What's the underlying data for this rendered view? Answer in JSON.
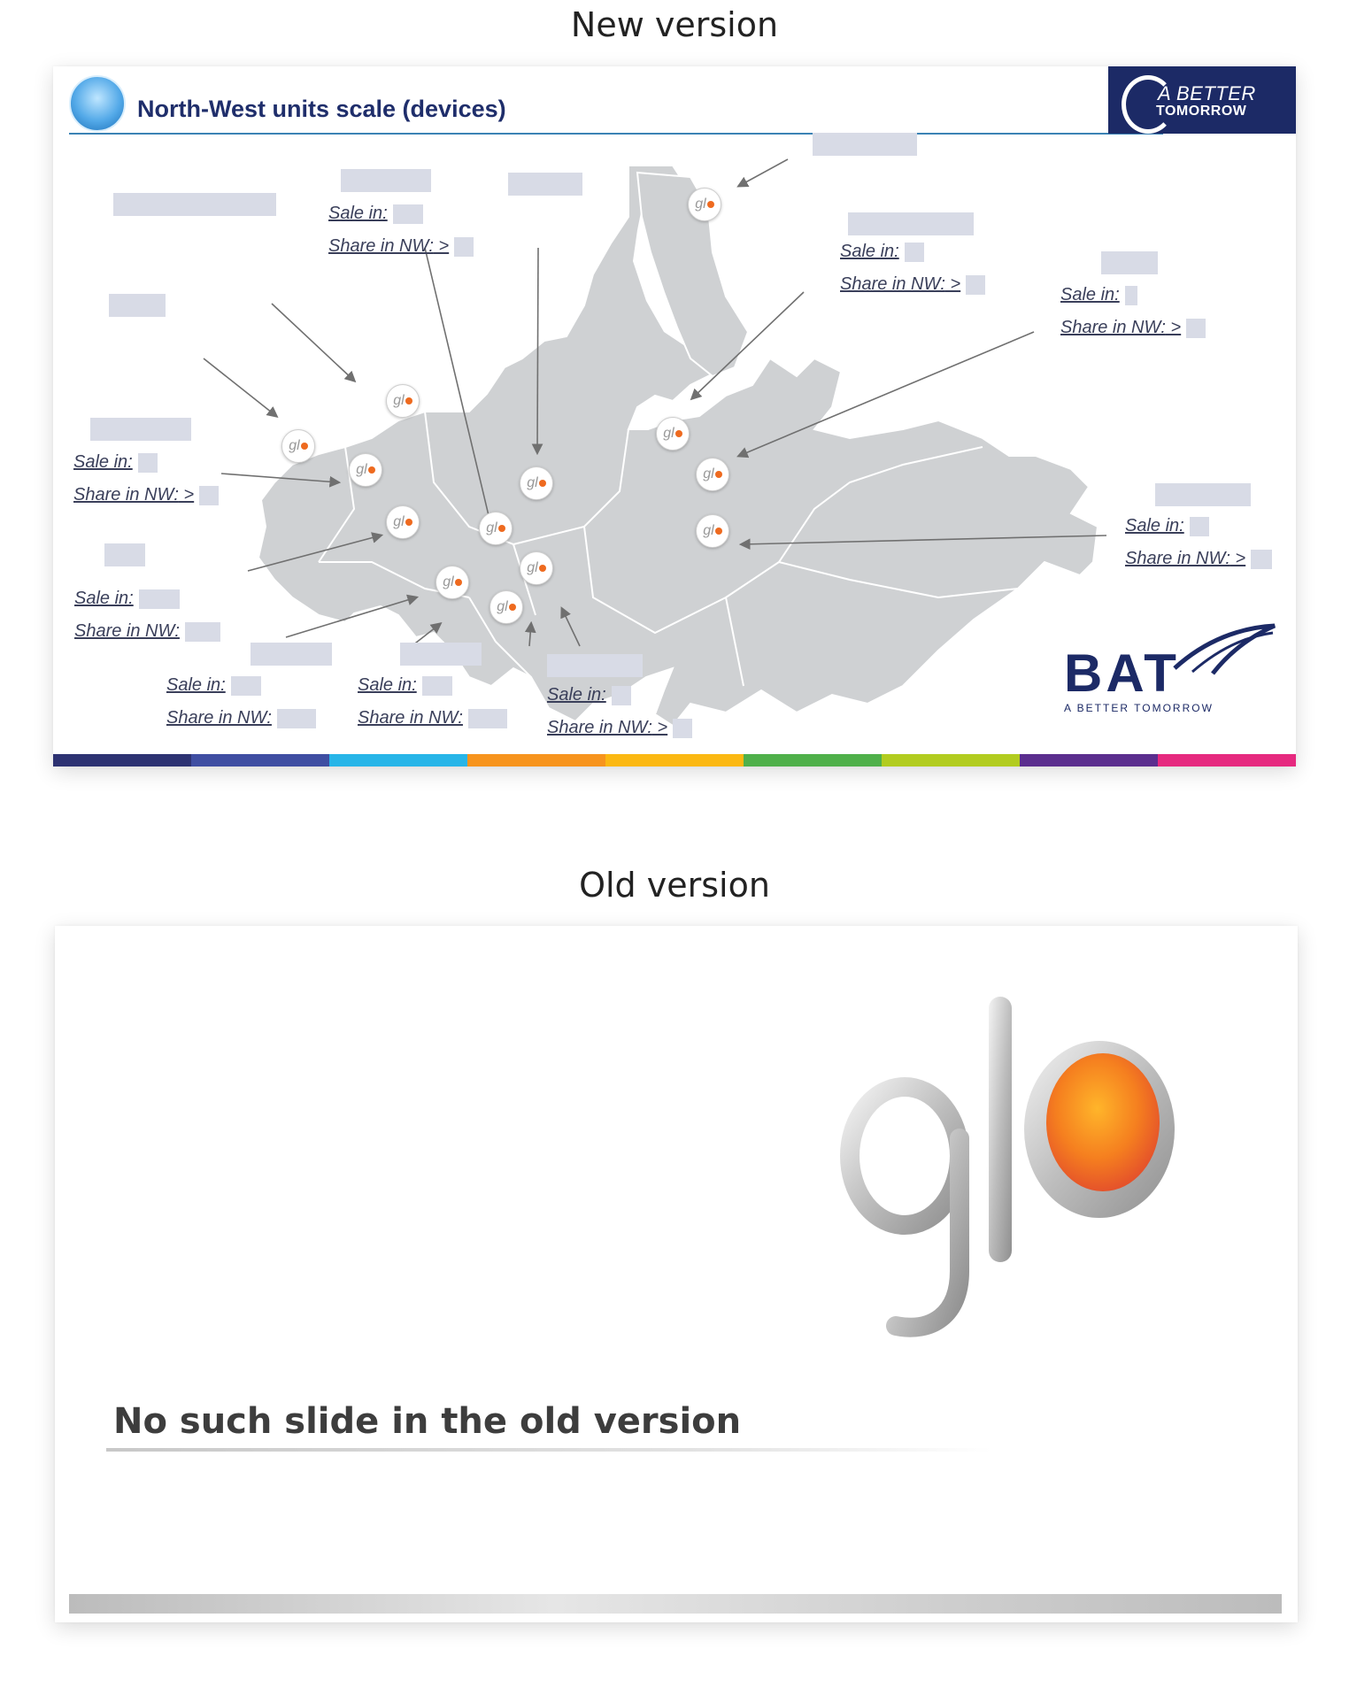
{
  "headings": {
    "new": "New version",
    "old": "Old version"
  },
  "new_slide": {
    "title": "North-West units scale (devices)",
    "top_logo": {
      "line1": "A BETTER",
      "line2": "TOMORROW"
    },
    "labels": {
      "sale": "Sale in:",
      "share": "Share in NW:",
      "arrow": ">"
    },
    "bat_logo": {
      "word": "BAT",
      "tagline": "A BETTER TOMORROW"
    },
    "marker_text": "gl",
    "colors": {
      "title": "#1f2e6b",
      "map_fill": "#cfd1d3",
      "placeholder": "#d8dbe6",
      "bar": [
        "#2d3272",
        "#3f4ea2",
        "#27b5e8",
        "#f7941d",
        "#fbb812",
        "#4fb04a",
        "#b2cc1f",
        "#5b2e8e",
        "#e6297f"
      ]
    }
  },
  "old_slide": {
    "message": "No such slide in the old version",
    "logo_letters": "gl"
  }
}
